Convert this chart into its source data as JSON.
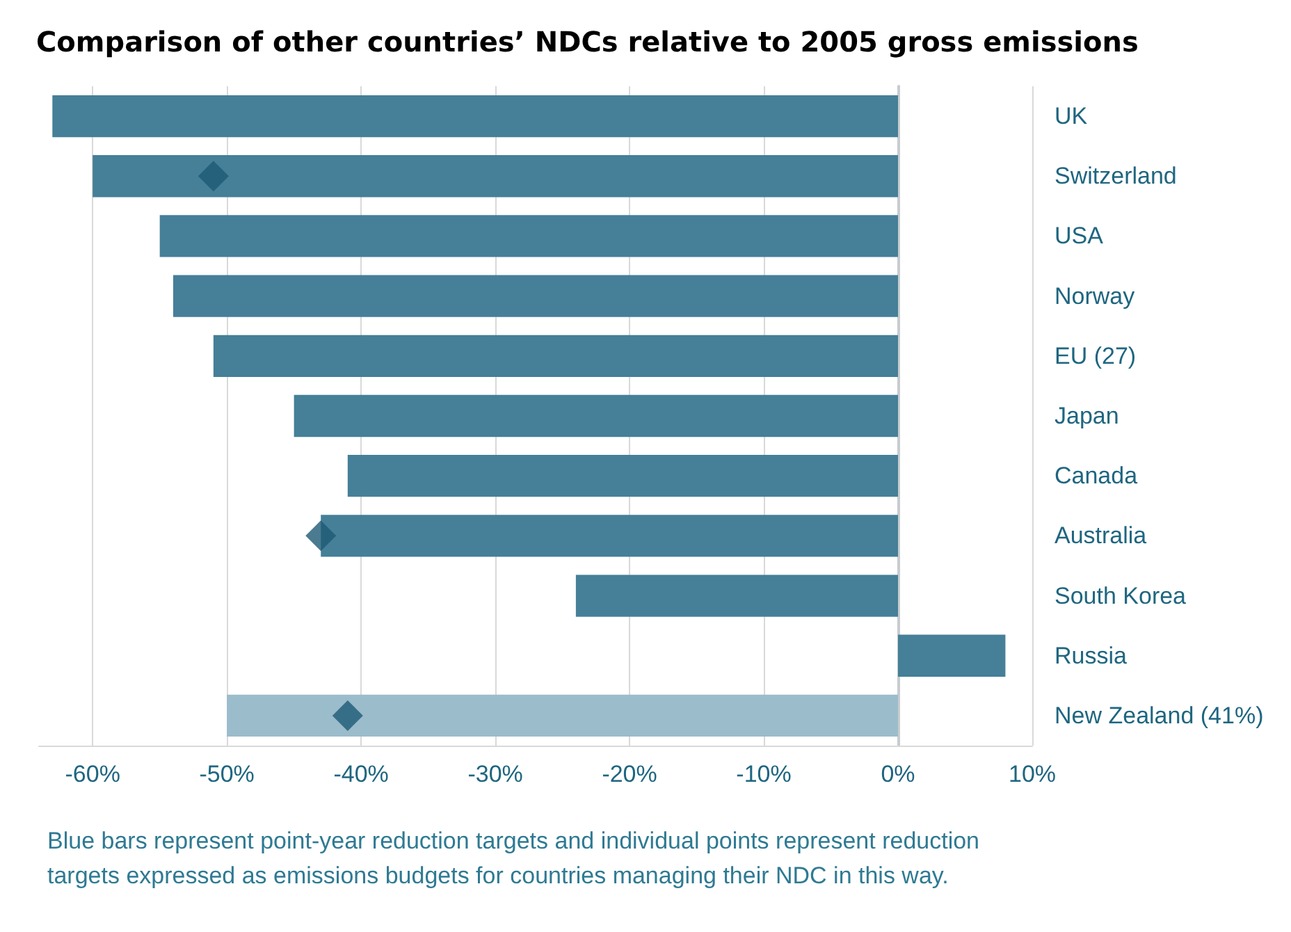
{
  "chart_data": {
    "type": "bar",
    "orientation": "horizontal",
    "title": "Comparison of other countries’ NDCs relative to 2005 gross emissions",
    "categories": [
      "UK",
      "Switzerland",
      "USA",
      "Norway",
      "EU (27)",
      "Japan",
      "Canada",
      "Australia",
      "South Korea",
      "Russia",
      "New Zealand (41%)"
    ],
    "series": [
      {
        "values": [
          -63,
          -60,
          -55,
          -54,
          -51,
          -45,
          -41,
          -43,
          -24,
          8,
          -50
        ],
        "colors": [
          "#457f98",
          "#457f98",
          "#457f98",
          "#457f98",
          "#457f98",
          "#457f98",
          "#457f98",
          "#457f98",
          "#457f98",
          "#457f98",
          "#9bbccb"
        ]
      },
      {
        "type": "scatter",
        "marker": "diamond",
        "color": "#1e5a75",
        "x": [
          "Switzerland",
          "Australia",
          "New Zealand (41%)"
        ],
        "values": [
          -51,
          -43,
          -41
        ]
      }
    ],
    "xlim": [
      -64,
      10
    ],
    "xticks": [
      {
        "value": -60,
        "label": "-60%"
      },
      {
        "value": -50,
        "label": "-50%"
      },
      {
        "value": -40,
        "label": "-40%"
      },
      {
        "value": -30,
        "label": "-30%"
      },
      {
        "value": -20,
        "label": "-20%"
      },
      {
        "value": -10,
        "label": "-10%"
      },
      {
        "value": 0,
        "label": "0%"
      },
      {
        "value": 10,
        "label": "10%"
      }
    ],
    "grid": "x",
    "annotations": [
      "Blue bars represent point-year reduction targets and individual points represent reduction targets expressed as emissions budgets for countries managing their NDC in this way."
    ]
  }
}
